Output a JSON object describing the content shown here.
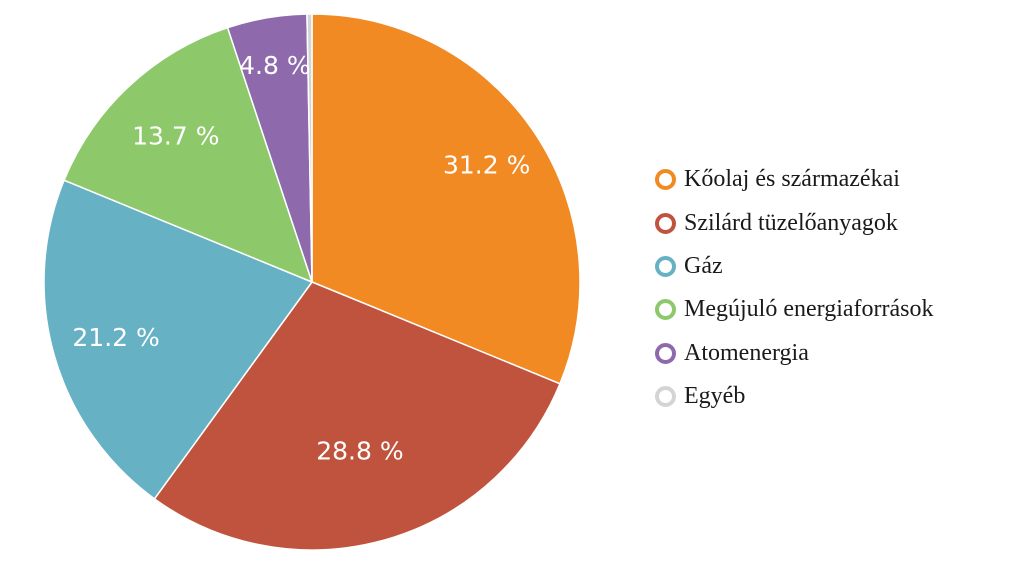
{
  "chart_data": {
    "type": "pie",
    "title": "",
    "legend_position": "right",
    "start_angle_deg": 0,
    "direction": "clockwise",
    "categories": [
      "Kőolaj és származékai",
      "Szilárd tüzelőanyagok",
      "Gáz",
      "Megújuló energiaforrások",
      "Atomenergia",
      "Egyéb"
    ],
    "values": [
      31.2,
      28.8,
      21.2,
      13.7,
      4.8,
      0.3
    ],
    "labels": [
      "31.2 %",
      "28.8 %",
      "21.2 %",
      "13.7 %",
      "4.8 %",
      ""
    ],
    "colors": [
      "#f28a24",
      "#c0533e",
      "#66b1c4",
      "#8dc86a",
      "#8e6aad",
      "#d4d4d4"
    ]
  }
}
